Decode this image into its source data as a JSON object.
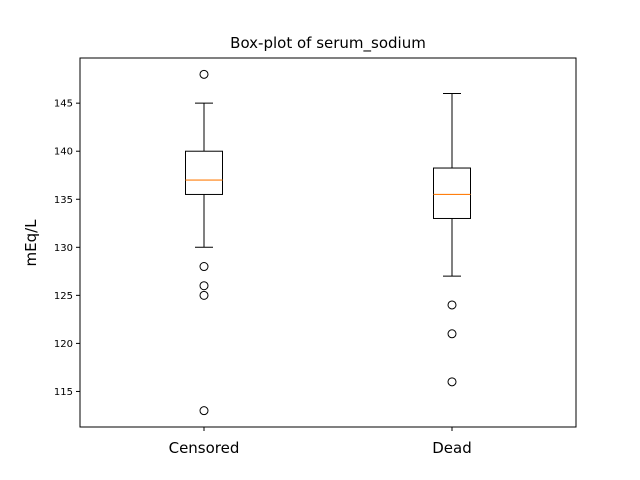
{
  "chart_data": {
    "type": "box",
    "title": "Box-plot of serum_sodium",
    "xlabel": "",
    "ylabel": "mEq/L",
    "categories": [
      "Censored",
      "Dead"
    ],
    "ylim": [
      111.3,
      149.7
    ],
    "yticks": [
      115,
      120,
      125,
      130,
      135,
      140,
      145
    ],
    "grid": false,
    "boxes": [
      {
        "category": "Censored",
        "whisker_low": 130,
        "q1": 135.5,
        "median": 137,
        "q3": 140,
        "whisker_high": 145,
        "outliers": [
          148,
          128,
          126,
          125,
          113
        ]
      },
      {
        "category": "Dead",
        "whisker_low": 127,
        "q1": 133,
        "median": 135.5,
        "q3": 138.25,
        "whisker_high": 146,
        "outliers": [
          124,
          121,
          116
        ]
      }
    ],
    "colors": {
      "median": "#ff7f0e",
      "box": "#000000"
    }
  }
}
